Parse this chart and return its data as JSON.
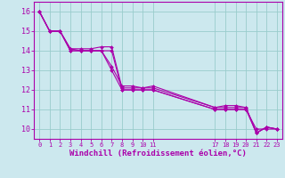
{
  "xlabel": "Windchill (Refroidissement éolien,°C)",
  "bg_color": "#cce8ee",
  "line_color": "#aa00aa",
  "grid_color": "#99cccc",
  "xlim": [
    -0.5,
    23.5
  ],
  "ylim": [
    9.5,
    16.5
  ],
  "yticks": [
    10,
    11,
    12,
    13,
    14,
    15,
    16
  ],
  "xticks": [
    0,
    1,
    2,
    3,
    4,
    5,
    6,
    7,
    8,
    9,
    10,
    11,
    17,
    18,
    19,
    20,
    21,
    22,
    23
  ],
  "lines": [
    {
      "x": [
        0,
        1,
        2,
        3,
        4,
        5,
        6,
        7,
        8,
        9,
        10,
        11,
        17,
        18,
        19,
        20,
        21,
        22,
        23
      ],
      "y": [
        16,
        15,
        15,
        14,
        14,
        14,
        14,
        13,
        12,
        12,
        12,
        12,
        11,
        11,
        11,
        11,
        10,
        10,
        10
      ]
    },
    {
      "x": [
        0,
        1,
        2,
        3,
        4,
        5,
        6,
        7,
        8,
        9,
        10,
        11,
        17,
        18,
        19,
        20,
        21,
        22,
        23
      ],
      "y": [
        16,
        15,
        15,
        14,
        14,
        14,
        14,
        14,
        12,
        12,
        12,
        12,
        11,
        11,
        11,
        11,
        9.8,
        10.1,
        10
      ]
    },
    {
      "x": [
        0,
        1,
        2,
        3,
        4,
        5,
        6,
        7,
        8,
        9,
        10,
        11,
        17,
        18,
        19,
        20,
        21,
        22,
        23
      ],
      "y": [
        16,
        15,
        15,
        14.1,
        14,
        14,
        14,
        13.2,
        12.2,
        12.2,
        12.1,
        12.1,
        11.1,
        11.1,
        11.1,
        11.1,
        9.8,
        10.1,
        10
      ]
    },
    {
      "x": [
        0,
        1,
        2,
        3,
        4,
        5,
        6,
        7,
        8,
        9,
        10,
        11,
        17,
        18,
        19,
        20,
        21,
        22,
        23
      ],
      "y": [
        16,
        15,
        15,
        14.1,
        14.1,
        14.1,
        14.2,
        14.2,
        12.1,
        12.1,
        12.1,
        12.2,
        11.1,
        11.2,
        11.2,
        11.1,
        9.8,
        10.1,
        10
      ]
    }
  ]
}
